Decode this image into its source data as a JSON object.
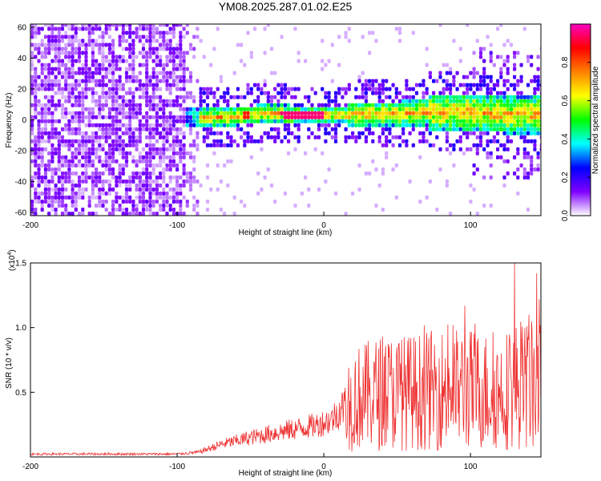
{
  "title": "YM08.2025.287.01.02.E25",
  "chart_data": [
    {
      "type": "heatmap",
      "xlabel": "Height of straight line (km)",
      "ylabel": "Frequency (Hz)",
      "xlim": [
        -200,
        148
      ],
      "ylim": [
        -62,
        62
      ],
      "xticks": [
        -200,
        -100,
        0,
        100
      ],
      "yticks": [
        -60,
        -40,
        -20,
        0,
        20,
        40,
        60
      ],
      "colorbar": {
        "label": "Normalized spectral amplitude",
        "range": [
          0,
          1
        ],
        "ticks": [
          "0.0",
          "0.2",
          "0.4",
          "0.6",
          "0.8"
        ],
        "stops": [
          "#ffffff",
          "#7f00ff",
          "#0000ff",
          "#00ffff",
          "#00ff00",
          "#ffff00",
          "#ff8000",
          "#ff0000",
          "#ff00c0"
        ]
      },
      "ridge_center_hz": [
        {
          "x": -95,
          "y": 0
        },
        {
          "x": -80,
          "y": 0
        },
        {
          "x": -60,
          "y": 1
        },
        {
          "x": -40,
          "y": 3
        },
        {
          "x": -20,
          "y": 2
        },
        {
          "x": 0,
          "y": 2
        },
        {
          "x": 20,
          "y": 2
        },
        {
          "x": 60,
          "y": 3
        },
        {
          "x": 100,
          "y": 4
        },
        {
          "x": 120,
          "y": 2
        },
        {
          "x": 148,
          "y": 2
        }
      ],
      "peak_band": {
        "x_from": -30,
        "x_to": -2,
        "freq": 2,
        "amplitude": 1.0
      }
    },
    {
      "type": "line",
      "xlabel": "Height of straight line (km)",
      "ylabel": "SNR (10 * v/v)",
      "y_scale_label": "(x10",
      "y_scale_exp": "4",
      "xlim": [
        -200,
        148
      ],
      "ylim": [
        0,
        1.5
      ],
      "xticks": [
        -200,
        -100,
        0,
        100
      ],
      "yticks": [
        "0.5",
        "1.0",
        "1.5"
      ],
      "series_color": "#ee3333",
      "envelope": [
        {
          "x": -200,
          "y": 0.03
        },
        {
          "x": -100,
          "y": 0.03
        },
        {
          "x": -85,
          "y": 0.05
        },
        {
          "x": -70,
          "y": 0.13
        },
        {
          "x": -50,
          "y": 0.2
        },
        {
          "x": -30,
          "y": 0.26
        },
        {
          "x": -15,
          "y": 0.3
        },
        {
          "x": -5,
          "y": 0.33
        },
        {
          "x": 5,
          "y": 0.38
        },
        {
          "x": 15,
          "y": 0.55
        },
        {
          "x": 20,
          "y": 0.85
        },
        {
          "x": 40,
          "y": 0.95
        },
        {
          "x": 60,
          "y": 0.95
        },
        {
          "x": 80,
          "y": 1.0
        },
        {
          "x": 100,
          "y": 1.0
        },
        {
          "x": 120,
          "y": 0.95
        },
        {
          "x": 130,
          "y": 1.05
        },
        {
          "x": 148,
          "y": 1.05
        }
      ],
      "spikes": [
        {
          "x": 130,
          "y": 1.5
        },
        {
          "x": 145,
          "y": 1.42
        },
        {
          "x": 96,
          "y": 1.17
        },
        {
          "x": 140,
          "y": 1.1
        },
        {
          "x": 147,
          "y": 1.22
        }
      ]
    }
  ]
}
